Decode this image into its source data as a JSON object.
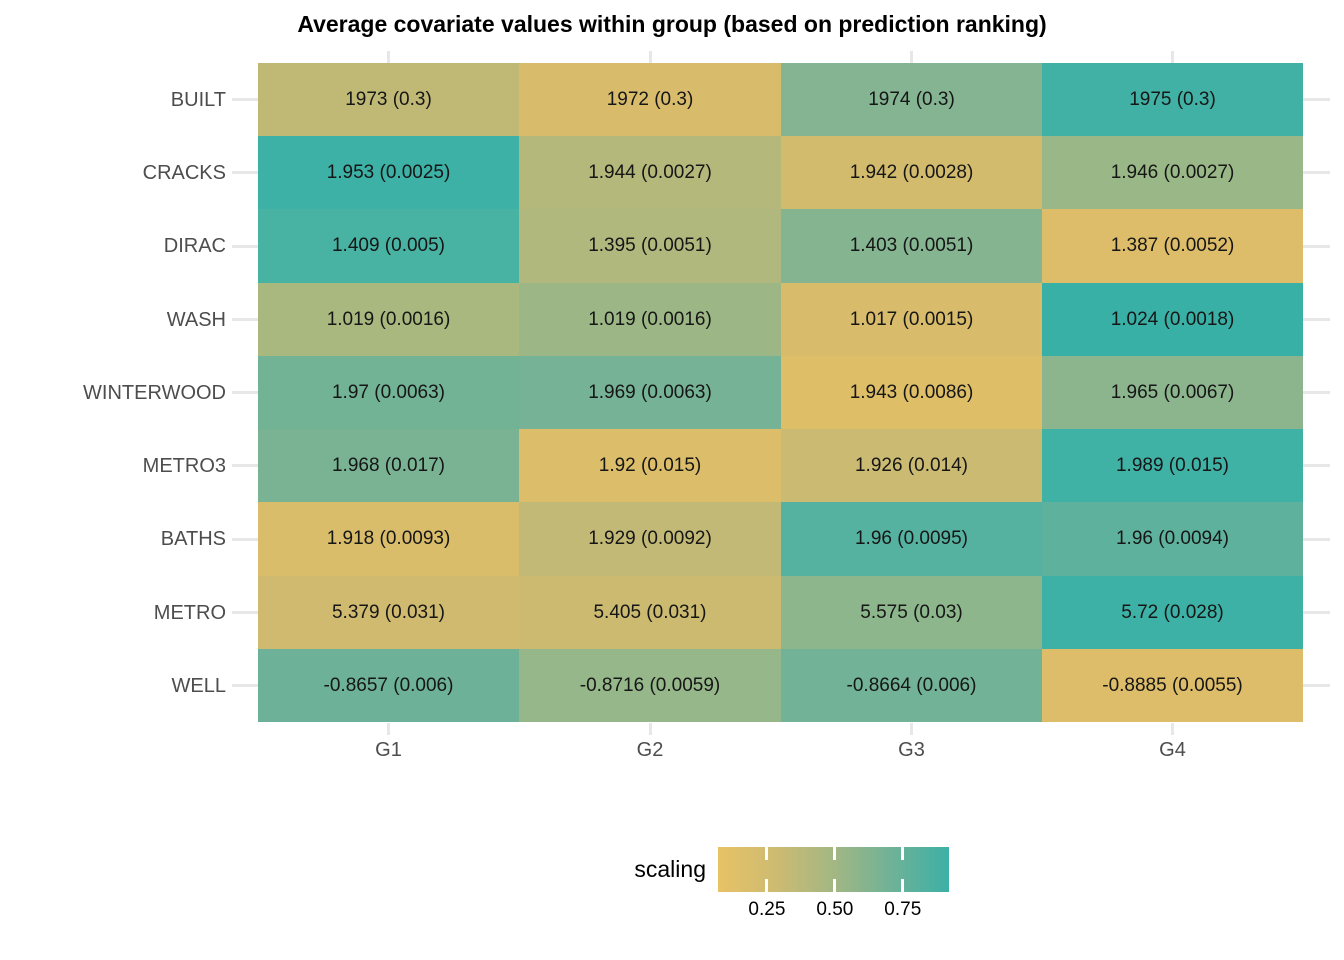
{
  "chart_data": {
    "type": "heatmap",
    "title": "Average covariate values within group (based on prediction ranking)",
    "x_categories": [
      "G1",
      "G2",
      "G3",
      "G4"
    ],
    "y_categories": [
      "BUILT",
      "CRACKS",
      "DIRAC",
      "WASH",
      "WINTERWOOD",
      "METRO3",
      "BATHS",
      "METRO",
      "WELL"
    ],
    "cell_label_format": "value (se)",
    "values": [
      [
        1973,
        1972,
        1974,
        1975
      ],
      [
        1.953,
        1.944,
        1.942,
        1.946
      ],
      [
        1.409,
        1.395,
        1.403,
        1.387
      ],
      [
        1.019,
        1.019,
        1.017,
        1.024
      ],
      [
        1.97,
        1.969,
        1.943,
        1.965
      ],
      [
        1.968,
        1.92,
        1.926,
        1.989
      ],
      [
        1.918,
        1.929,
        1.96,
        1.96
      ],
      [
        5.379,
        5.405,
        5.575,
        5.72
      ],
      [
        -0.8657,
        -0.8716,
        -0.8664,
        -0.8885
      ]
    ],
    "standard_errors": [
      [
        0.3,
        0.3,
        0.3,
        0.3
      ],
      [
        0.0025,
        0.0027,
        0.0028,
        0.0027
      ],
      [
        0.005,
        0.0051,
        0.0051,
        0.0052
      ],
      [
        0.0016,
        0.0016,
        0.0015,
        0.0018
      ],
      [
        0.0063,
        0.0063,
        0.0086,
        0.0067
      ],
      [
        0.017,
        0.015,
        0.014,
        0.015
      ],
      [
        0.0093,
        0.0092,
        0.0095,
        0.0094
      ],
      [
        0.031,
        0.031,
        0.03,
        0.028
      ],
      [
        0.006,
        0.0059,
        0.006,
        0.0055
      ]
    ],
    "cell_colors": [
      [
        "#c0b975",
        "#d8bc6c",
        "#84b491",
        "#41b1a5"
      ],
      [
        "#3db1a5",
        "#b4b87b",
        "#d3bb6e",
        "#9ab887"
      ],
      [
        "#48b2a3",
        "#b0b87d",
        "#85b490",
        "#ddbd69"
      ],
      [
        "#a9b87f",
        "#9cb785",
        "#d8bc6b",
        "#39b0a6"
      ],
      [
        "#72b295",
        "#76b295",
        "#dfbe68",
        "#8cb58e"
      ],
      [
        "#7ab394",
        "#dcbd6a",
        "#cbba72",
        "#3fb1a5"
      ],
      [
        "#d9bd6b",
        "#c2b976",
        "#55b2a0",
        "#5eb29d"
      ],
      [
        "#cfba70",
        "#ccba71",
        "#8db68d",
        "#3db1a6"
      ],
      [
        "#6db298",
        "#95b78a",
        "#72b296",
        "#ddbd69"
      ]
    ],
    "grid": false,
    "legend": {
      "title": "scaling",
      "position": "bottom",
      "ticks": [
        0.25,
        0.5,
        0.75
      ],
      "tick_labels": [
        "0.25",
        "0.50",
        "0.75"
      ],
      "domain": [
        0.07,
        0.92
      ],
      "gradient_stops": [
        {
          "pos": 0.0,
          "color": "#e8c266"
        },
        {
          "pos": 0.25,
          "color": "#cdbb71"
        },
        {
          "pos": 0.5,
          "color": "#a3b783"
        },
        {
          "pos": 0.75,
          "color": "#6fb297"
        },
        {
          "pos": 1.0,
          "color": "#3cb0a6"
        }
      ]
    },
    "axis_text_color": "#4d4d4d",
    "cell_text_color": "#161616",
    "tick_mark_color": "#e7e7e7"
  }
}
